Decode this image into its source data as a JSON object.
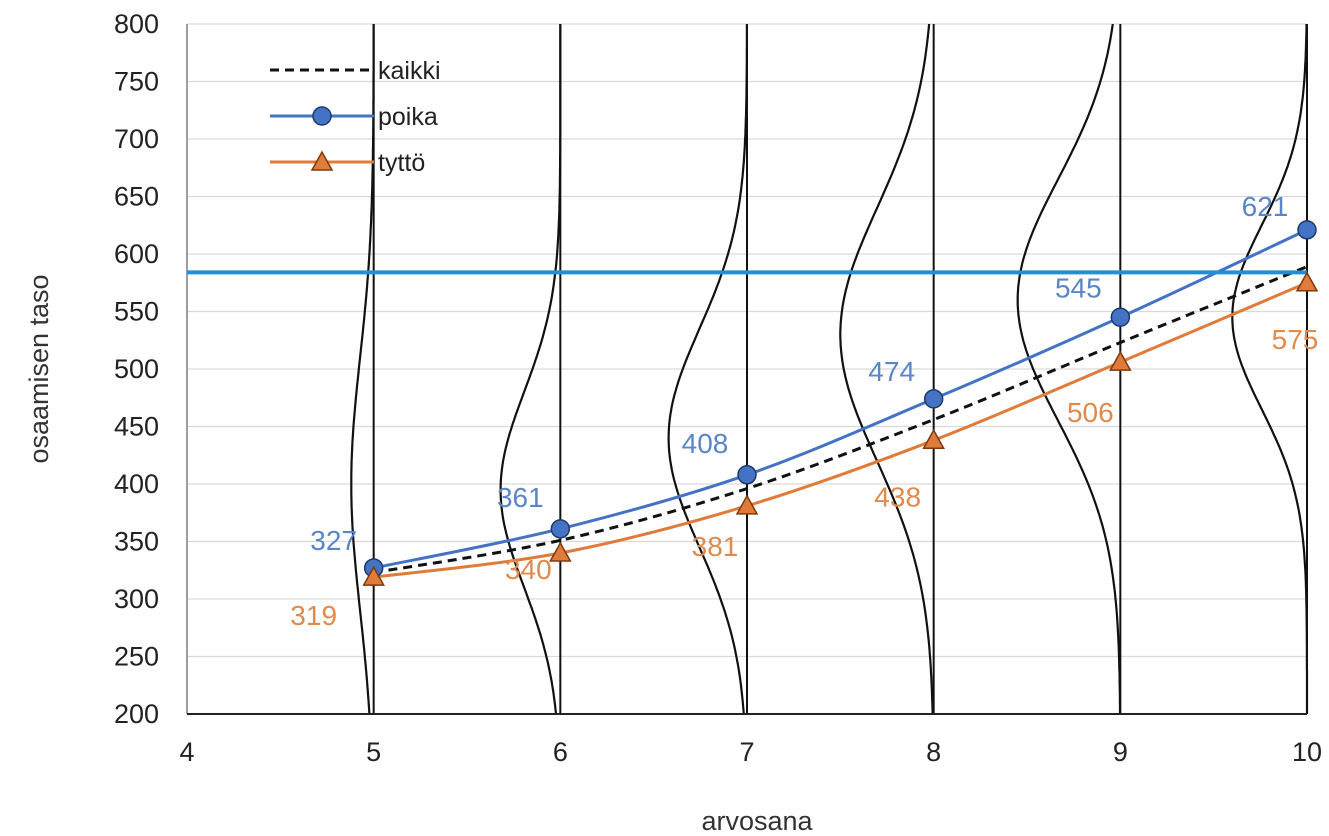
{
  "chart_data": {
    "type": "line",
    "xlabel": "arvosana",
    "ylabel": "osaamisen taso",
    "xlim": [
      4,
      10
    ],
    "ylim": [
      200,
      800
    ],
    "x_ticks": [
      "4",
      "5",
      "6",
      "7",
      "8",
      "9",
      "10"
    ],
    "y_ticks": [
      "200",
      "250",
      "300",
      "350",
      "400",
      "450",
      "500",
      "550",
      "600",
      "650",
      "700",
      "750",
      "800"
    ],
    "grid": "horizontal",
    "legend_position": "top-left",
    "series": [
      {
        "name": "kaikki",
        "style": "dashed",
        "color": "#111111",
        "x": [
          5,
          6,
          7,
          8,
          9,
          10
        ],
        "values": [
          323,
          351,
          396,
          456,
          523,
          589
        ],
        "show_labels": false
      },
      {
        "name": "poika",
        "style": "solid",
        "marker": "circle",
        "color": "#4472c4",
        "label_color": "#5a86c8",
        "x": [
          5,
          6,
          7,
          8,
          9,
          10
        ],
        "values": [
          327,
          361,
          408,
          474,
          545,
          621
        ],
        "labels": [
          "327",
          "361",
          "408",
          "474",
          "545",
          "621"
        ],
        "show_labels": true
      },
      {
        "name": "tyttö",
        "style": "solid",
        "marker": "triangle",
        "color": "#e07b39",
        "label_color": "#e08a4c",
        "x": [
          5,
          6,
          7,
          8,
          9,
          10
        ],
        "values": [
          319,
          340,
          381,
          438,
          506,
          575
        ],
        "labels": [
          "319",
          "340",
          "381",
          "438",
          "506",
          "575"
        ],
        "show_labels": true
      }
    ],
    "reference_line": {
      "y": 584,
      "color": "#1e90d8"
    },
    "distributions": [
      {
        "x": 5,
        "mean": 400,
        "sd": 110,
        "amp": 0.12
      },
      {
        "x": 6,
        "mean": 395,
        "sd": 85,
        "amp": 0.32
      },
      {
        "x": 7,
        "mean": 440,
        "sd": 95,
        "amp": 0.42
      },
      {
        "x": 8,
        "mean": 530,
        "sd": 110,
        "amp": 0.5
      },
      {
        "x": 9,
        "mean": 560,
        "sd": 105,
        "amp": 0.55
      },
      {
        "x": 10,
        "mean": 545,
        "sd": 80,
        "amp": 0.4
      }
    ]
  }
}
